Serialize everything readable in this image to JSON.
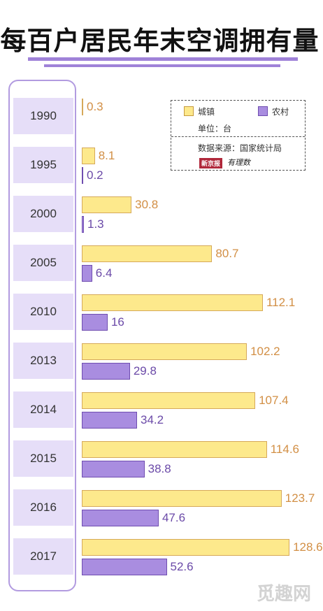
{
  "chart_data": {
    "type": "bar",
    "orientation": "horizontal",
    "title": "每百户居民年末空调拥有量",
    "categories": [
      "1990",
      "1995",
      "2000",
      "2005",
      "2010",
      "2013",
      "2014",
      "2015",
      "2016",
      "2017"
    ],
    "series": [
      {
        "name": "城镇",
        "values": [
          0.3,
          8.1,
          30.8,
          80.7,
          112.1,
          102.2,
          107.4,
          114.6,
          123.7,
          128.6
        ],
        "color": "#fde98c"
      },
      {
        "name": "农村",
        "values": [
          null,
          0.2,
          1.3,
          6.4,
          16,
          29.8,
          34.2,
          38.8,
          47.6,
          52.6
        ],
        "color": "#a98de0"
      }
    ],
    "value_labels": {
      "城镇": [
        "0.3",
        "8.1",
        "30.8",
        "80.7",
        "112.1",
        "102.2",
        "107.4",
        "114.6",
        "123.7",
        "128.6"
      ],
      "农村": [
        "",
        "0.2",
        "1.3",
        "6.4",
        "16",
        "29.8",
        "34.2",
        "38.8",
        "47.6",
        "52.6"
      ]
    },
    "legend": {
      "position": "top-right"
    },
    "grid": false
  },
  "legend_box": {
    "unit": "单位：台",
    "source": "数据来源：国家统计局",
    "logo_red": "新京报",
    "logo_text": "有理数"
  },
  "watermark": "觅趣网",
  "colors": {
    "accent": "#9f82d8",
    "urban": "#fde98c",
    "rural": "#a98de0"
  }
}
